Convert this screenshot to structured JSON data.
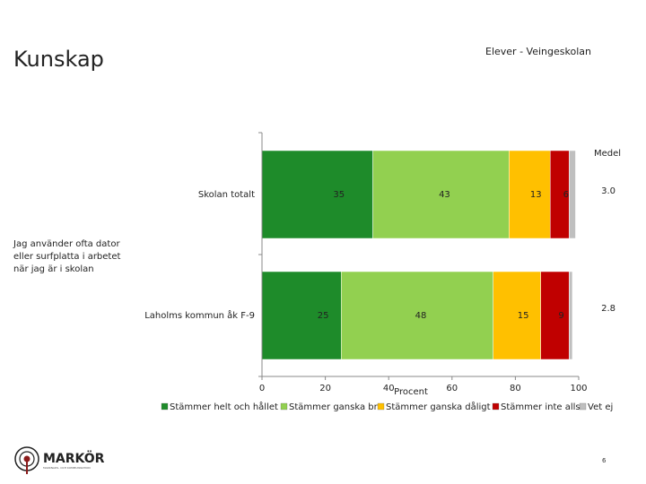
{
  "page": {
    "title": "Kunskap",
    "subtitle": "Elever - Veingeskolan",
    "page_number": "6",
    "logo_text": "MARKÖR",
    "logo_tagline": "MARKNADS- OCH KOMMUNIKATION"
  },
  "chart_data": {
    "type": "bar",
    "orientation": "horizontal",
    "stacked": true,
    "question": "Jag använder ofta dator eller surfplatta i arbetet när jag är i skolan",
    "categories": [
      "Skolan totalt",
      "Laholms kommun åk F-9"
    ],
    "series": [
      {
        "name": "Stämmer helt och hållet",
        "color": "#1e8b2a",
        "values": [
          35,
          25
        ]
      },
      {
        "name": "Stämmer ganska bra",
        "color": "#92d050",
        "values": [
          43,
          48
        ]
      },
      {
        "name": "Stämmer ganska dåligt",
        "color": "#ffc000",
        "values": [
          13,
          15
        ]
      },
      {
        "name": "Stämmer inte alls",
        "color": "#c00000",
        "values": [
          6,
          9
        ]
      },
      {
        "name": "Vet ej",
        "color": "#bfbfbf",
        "values": [
          2,
          1
        ]
      }
    ],
    "data_labels": [
      [
        "35",
        "43",
        "13",
        "6",
        ""
      ],
      [
        "25",
        "48",
        "15",
        "9",
        ""
      ]
    ],
    "mean_header": "Medel",
    "means": [
      "3.0",
      "2.8"
    ],
    "xlabel": "Procent",
    "xlim": [
      0,
      100
    ],
    "xticks": [
      "0",
      "20",
      "40",
      "60",
      "80",
      "100"
    ],
    "legend_position": "bottom",
    "grid": false
  }
}
